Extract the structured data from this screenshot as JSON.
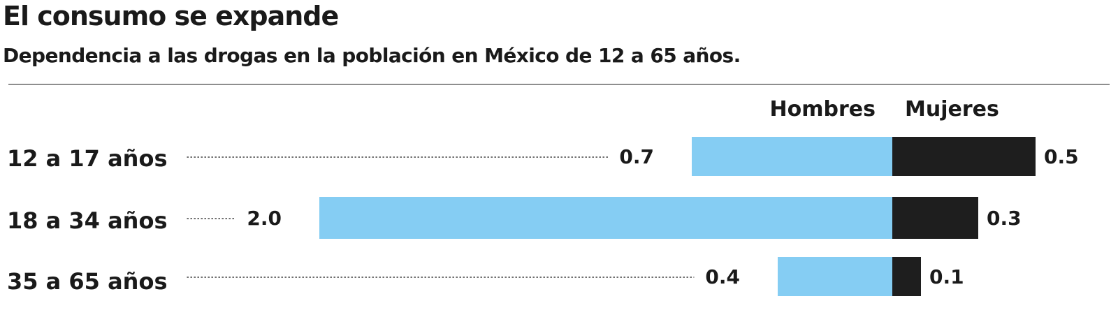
{
  "header": {
    "title": "El consumo se expande",
    "subtitle": "Dependencia a las drogas en la población en México de 12 a 65 años."
  },
  "colors": {
    "hombres": "#85cdf3",
    "mujeres": "#1e1e1e",
    "text": "#1a1a1a"
  },
  "chart_data": {
    "type": "bar",
    "orientation": "horizontal",
    "layout": "diverging",
    "title": "El consumo se expande",
    "subtitle": "Dependencia a las drogas en la población en México de 12 a 65 años.",
    "categories": [
      "12 a 17 años",
      "18 a 34 años",
      "35 a 65 años"
    ],
    "series": [
      {
        "name": "Hombres",
        "values": [
          0.7,
          2.0,
          0.4
        ],
        "labels": [
          "0.7",
          "2.0",
          "0.4"
        ],
        "color": "#85cdf3"
      },
      {
        "name": "Mujeres",
        "values": [
          0.5,
          0.3,
          0.1
        ],
        "labels": [
          "0.5",
          "0.3",
          "0.1"
        ],
        "color": "#1e1e1e"
      }
    ],
    "legend": "top",
    "grid": false
  }
}
